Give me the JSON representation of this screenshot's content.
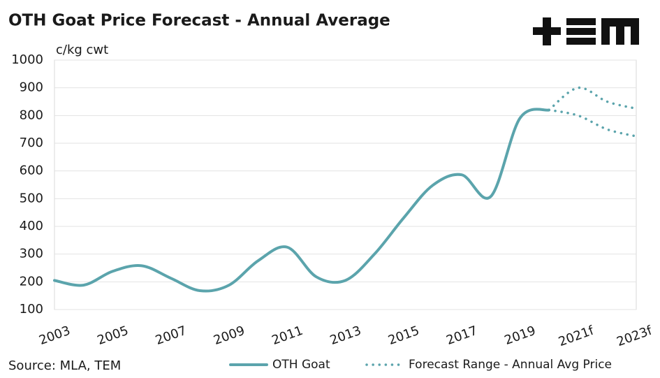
{
  "chart_data": {
    "type": "line",
    "title": "OTH Goat Price Forecast - Annual Average",
    "y_label": "c/kg cwt",
    "source": "Source: MLA, TEM",
    "categories": [
      "2003",
      null,
      "2005",
      null,
      "2007",
      null,
      "2009",
      null,
      "2011",
      null,
      "2013",
      null,
      "2015",
      null,
      "2017",
      null,
      "2019",
      null,
      "2021f",
      null,
      "2023f"
    ],
    "series": [
      {
        "name": "OTH Goat",
        "color": "#5ba4ac",
        "style": "solid",
        "values": [
          205,
          188,
          238,
          258,
          213,
          168,
          188,
          276,
          325,
          218,
          205,
          300,
          430,
          548,
          586,
          508,
          790,
          820,
          null,
          null,
          null
        ]
      },
      {
        "name": "Forecast Range - Annual Avg Price",
        "color": "#5ba4ac",
        "style": "dotted",
        "values": [
          null,
          null,
          null,
          null,
          null,
          null,
          null,
          null,
          null,
          null,
          null,
          null,
          null,
          null,
          null,
          null,
          null,
          820,
          900,
          850,
          825
        ],
        "low": [
          null,
          null,
          null,
          null,
          null,
          null,
          null,
          null,
          null,
          null,
          null,
          null,
          null,
          null,
          null,
          null,
          null,
          820,
          800,
          750,
          725
        ]
      }
    ],
    "ylim": [
      100,
      1000
    ],
    "yticks": [
      100,
      200,
      300,
      400,
      500,
      600,
      700,
      800,
      900,
      1000
    ],
    "grid": true
  }
}
